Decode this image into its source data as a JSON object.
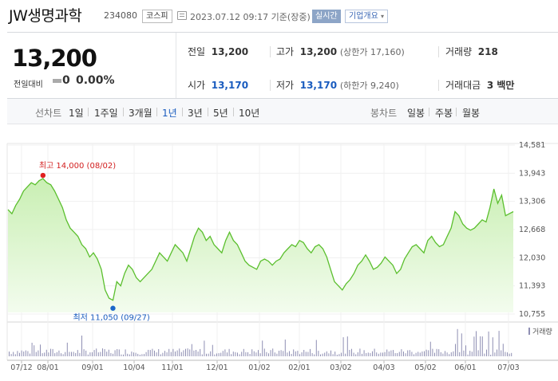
{
  "header": {
    "name": "JW생명과학",
    "code": "234080",
    "market": "코스피",
    "datetime": "2023.07.12 09:17 기준(장중)",
    "realtime": "실시간",
    "corp_info": "기업개요"
  },
  "summary": {
    "price": "13,200",
    "change_label": "전일대비",
    "change_value": "0",
    "change_pct": "0.00%",
    "prev_label": "전일",
    "prev_value": "13,200",
    "high_label": "고가",
    "high_value": "13,200",
    "upper_limit": "(상한가 17,160)",
    "volume_label": "거래량",
    "volume_value": "218",
    "open_label": "시가",
    "open_value": "13,170",
    "low_label": "저가",
    "low_value": "13,170",
    "lower_limit": "(하한가 9,240)",
    "amount_label": "거래대금",
    "amount_value": "3 백만"
  },
  "periods": {
    "line_label": "선차트",
    "items": [
      "1일",
      "1주일",
      "3개월",
      "1년",
      "3년",
      "5년",
      "10년"
    ],
    "selected": "1년",
    "candle_label": "봉차트",
    "candle_items": [
      "일봉",
      "주봉",
      "월봉"
    ]
  },
  "chart_data": {
    "type": "area",
    "y_ticks": [
      "14,581",
      "13,943",
      "13,306",
      "12,668",
      "12,030",
      "11,393",
      "10,755"
    ],
    "ylim": [
      10755,
      14581
    ],
    "x_ticks": [
      "07/12",
      "08/01",
      "09/01",
      "10/04",
      "11/01",
      "12/01",
      "01/02",
      "02/01",
      "03/02",
      "04/03",
      "05/02",
      "06/01",
      "07/03"
    ],
    "high_annotation": "최고 14,000 (08/02)",
    "low_annotation": "최저 11,050 (09/27)",
    "high_value": 14000,
    "low_value": 11050,
    "volume_legend": "거래량",
    "line_color": "#5bbf2e",
    "fill_color": "#d9f5c9",
    "values": [
      13250,
      13150,
      13350,
      13500,
      13700,
      13800,
      13900,
      13850,
      13950,
      14000,
      13900,
      13850,
      13700,
      13500,
      13300,
      13000,
      12800,
      12700,
      12600,
      12400,
      12300,
      12100,
      12200,
      12050,
      11800,
      11300,
      11100,
      11050,
      11500,
      11400,
      11700,
      11900,
      11800,
      11600,
      11500,
      11600,
      11700,
      11800,
      12000,
      12200,
      12100,
      12000,
      12200,
      12400,
      12300,
      12200,
      12000,
      12300,
      12600,
      12800,
      12700,
      12500,
      12600,
      12400,
      12300,
      12200,
      12500,
      12700,
      12500,
      12400,
      12200,
      12000,
      11900,
      11850,
      11800,
      12000,
      12050,
      12000,
      11900,
      12000,
      12050,
      12200,
      12300,
      12400,
      12350,
      12500,
      12450,
      12300,
      12200,
      12350,
      12400,
      12300,
      12100,
      11800,
      11500,
      11400,
      11300,
      11450,
      11550,
      11700,
      11900,
      12000,
      12150,
      12000,
      11800,
      11850,
      11950,
      12100,
      12000,
      11900,
      11700,
      11800,
      12050,
      12200,
      12350,
      12400,
      12300,
      12200,
      12500,
      12600,
      12450,
      12350,
      12400,
      12600,
      12800,
      13200,
      13100,
      12900,
      12800,
      12750,
      12800,
      12900,
      13000,
      12950,
      13300,
      13750,
      13400,
      13600,
      13100,
      13150,
      13200
    ]
  }
}
